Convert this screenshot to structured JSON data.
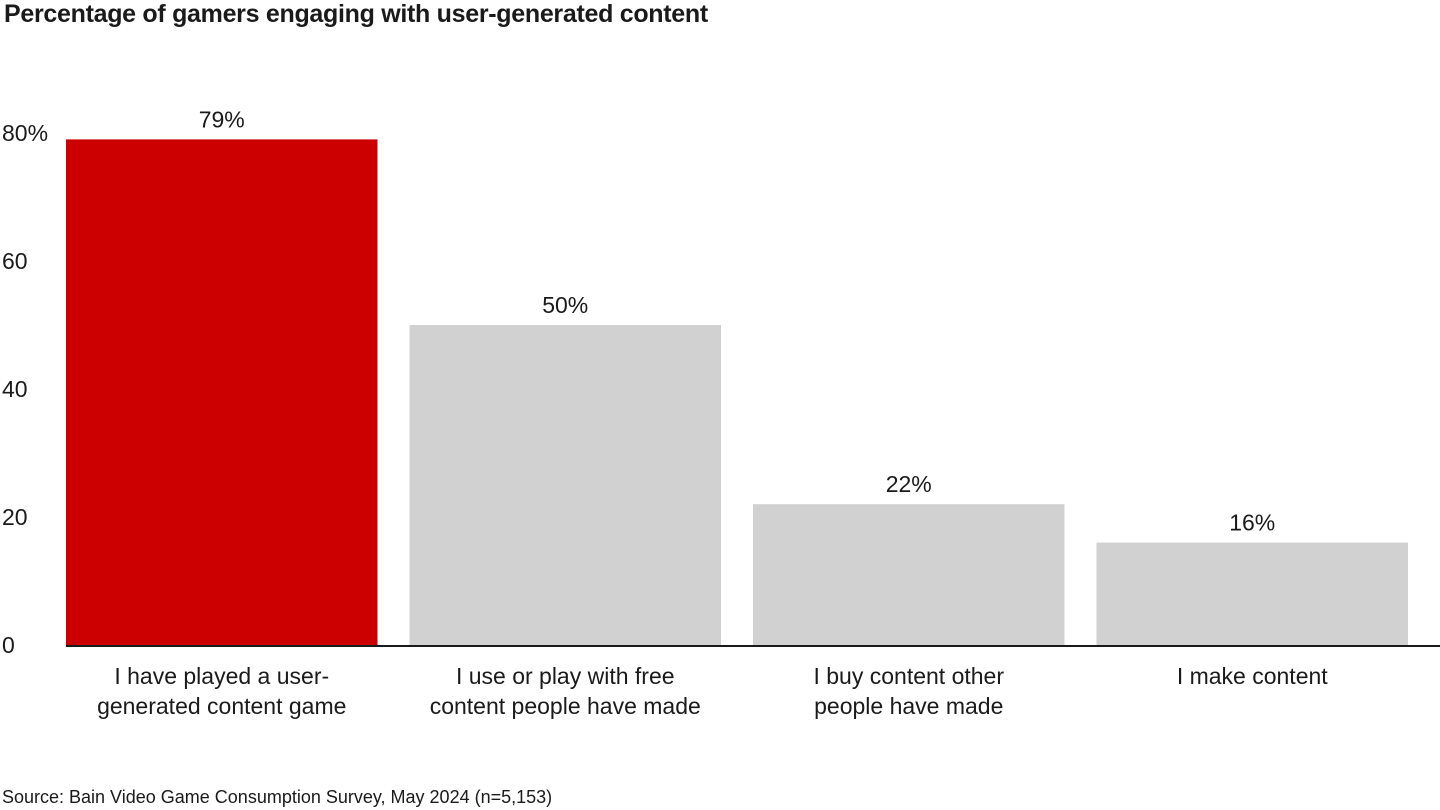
{
  "source": "Source: Bain Video Game Consumption Survey, May 2024 (n=5,153)",
  "chart_data": {
    "type": "bar",
    "title": "Percentage of gamers engaging with user-generated content",
    "categories": [
      [
        "I have played a user-",
        "generated content game"
      ],
      [
        "I use or play with free",
        "content people have made"
      ],
      [
        "I buy content other",
        "people have made"
      ],
      [
        "I make content"
      ]
    ],
    "values": [
      79,
      50,
      22,
      16
    ],
    "value_labels": [
      "79%",
      "50%",
      "22%",
      "16%"
    ],
    "y_ticks": [
      0,
      20,
      40,
      60,
      80
    ],
    "y_tick_labels": [
      "0",
      "20",
      "40",
      "60",
      "80%"
    ],
    "ylim": [
      0,
      80
    ],
    "grid": false,
    "legend": "none",
    "colors": {
      "highlight": "#cc0000",
      "default": "#d1d1d1",
      "axis": "#1a1a1a"
    },
    "highlight_index": 0
  }
}
